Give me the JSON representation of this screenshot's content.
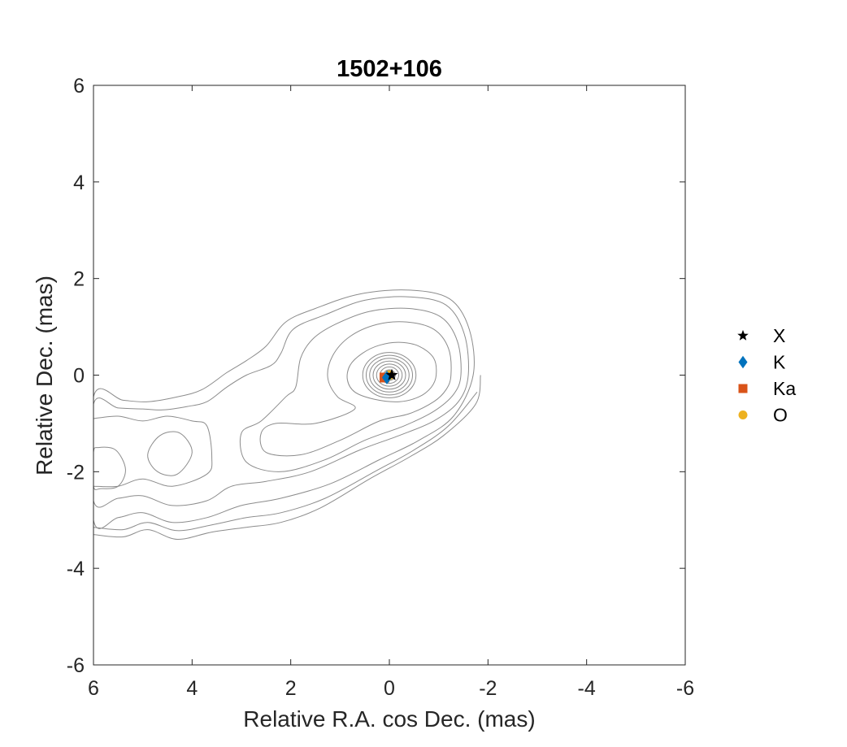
{
  "chart_data": {
    "type": "scatter",
    "title": "1502+106",
    "xlabel": "Relative R.A. cos Dec. (mas)",
    "ylabel": "Relative Dec. (mas)",
    "xlim": [
      6,
      -6
    ],
    "ylim": [
      -6,
      6
    ],
    "x_reversed": true,
    "xticks": [
      "6",
      "4",
      "2",
      "0",
      "-2",
      "-4",
      "-6"
    ],
    "yticks": [
      "6",
      "4",
      "2",
      "0",
      "-2",
      "-4",
      "-6"
    ],
    "grid": false,
    "legend_position": "outside-right",
    "legend": [
      {
        "label": "X",
        "marker": "star",
        "color": "#000000"
      },
      {
        "label": "K",
        "marker": "diamond",
        "color": "#0072BD"
      },
      {
        "label": "Ka",
        "marker": "square",
        "color": "#D95319"
      },
      {
        "label": "O",
        "marker": "circle",
        "color": "#EDB120"
      }
    ],
    "series": [
      {
        "name": "X",
        "marker": "star",
        "color": "#000000",
        "points": [
          [
            -0.05,
            0.0
          ]
        ]
      },
      {
        "name": "K",
        "marker": "diamond",
        "color": "#0072BD",
        "points": [
          [
            0.05,
            -0.05
          ]
        ]
      },
      {
        "name": "Ka",
        "marker": "square",
        "color": "#D95319",
        "points": [
          [
            0.1,
            -0.05
          ]
        ]
      },
      {
        "name": "O",
        "marker": "circle",
        "color": "#EDB120",
        "points": [
          [
            0.0,
            0.0
          ]
        ]
      }
    ],
    "contours": {
      "color": "#8c8c8c",
      "core_rings": [
        [
          0.12,
          0.11
        ],
        [
          0.19,
          0.17
        ],
        [
          0.26,
          0.23
        ],
        [
          0.33,
          0.29
        ],
        [
          0.4,
          0.35
        ],
        [
          0.47,
          0.41
        ],
        [
          0.54,
          0.47
        ]
      ],
      "outer": [
        [
          [
            -0.95,
            0.0
          ],
          [
            -0.9,
            0.35
          ],
          [
            -0.6,
            0.6
          ],
          [
            -0.2,
            0.68
          ],
          [
            0.2,
            0.62
          ],
          [
            0.55,
            0.45
          ],
          [
            0.8,
            0.2
          ],
          [
            0.85,
            -0.1
          ],
          [
            0.7,
            -0.35
          ],
          [
            0.3,
            -0.5
          ],
          [
            -0.2,
            -0.55
          ],
          [
            -0.6,
            -0.45
          ],
          [
            -0.85,
            -0.25
          ],
          [
            -0.95,
            0.0
          ]
        ],
        [
          [
            -1.25,
            0.0
          ],
          [
            -1.2,
            0.55
          ],
          [
            -0.9,
            0.95
          ],
          [
            -0.35,
            1.1
          ],
          [
            0.25,
            1.05
          ],
          [
            0.8,
            0.8
          ],
          [
            1.15,
            0.4
          ],
          [
            1.25,
            -0.05
          ],
          [
            1.05,
            -0.45
          ],
          [
            0.7,
            -0.7
          ],
          [
            1.5,
            -1.0
          ],
          [
            2.3,
            -1.0
          ],
          [
            2.6,
            -1.2
          ],
          [
            2.5,
            -1.6
          ],
          [
            1.8,
            -1.65
          ],
          [
            1.0,
            -1.35
          ],
          [
            0.2,
            -0.95
          ],
          [
            -0.4,
            -0.8
          ],
          [
            -0.9,
            -0.55
          ],
          [
            -1.15,
            -0.3
          ],
          [
            -1.25,
            0.0
          ]
        ],
        [
          [
            -1.45,
            0.0
          ],
          [
            -1.38,
            0.7
          ],
          [
            -1.05,
            1.2
          ],
          [
            -0.4,
            1.38
          ],
          [
            0.4,
            1.32
          ],
          [
            1.1,
            1.05
          ],
          [
            1.55,
            0.75
          ],
          [
            1.8,
            0.35
          ],
          [
            1.9,
            -0.25
          ],
          [
            2.1,
            -0.45
          ],
          [
            2.6,
            -0.95
          ],
          [
            3.0,
            -1.2
          ],
          [
            2.9,
            -1.8
          ],
          [
            2.2,
            -2.0
          ],
          [
            1.3,
            -1.75
          ],
          [
            0.5,
            -1.35
          ],
          [
            -0.3,
            -1.05
          ],
          [
            -0.9,
            -0.75
          ],
          [
            -1.3,
            -0.4
          ],
          [
            -1.45,
            0.0
          ]
        ],
        [
          [
            -1.6,
            0.0
          ],
          [
            -1.52,
            0.85
          ],
          [
            -1.15,
            1.45
          ],
          [
            -0.4,
            1.62
          ],
          [
            0.5,
            1.55
          ],
          [
            1.3,
            1.25
          ],
          [
            1.95,
            0.95
          ],
          [
            2.2,
            0.45
          ],
          [
            2.4,
            0.2
          ],
          [
            2.9,
            0.0
          ],
          [
            3.3,
            -0.25
          ],
          [
            3.7,
            -0.55
          ],
          [
            4.1,
            -0.65
          ],
          [
            4.6,
            -0.72
          ],
          [
            5.0,
            -0.7
          ],
          [
            5.5,
            -0.68
          ],
          [
            6.0,
            -0.6
          ],
          [
            6.0,
            -2.6
          ],
          [
            5.5,
            -2.55
          ],
          [
            5.0,
            -2.5
          ],
          [
            4.4,
            -2.7
          ],
          [
            3.7,
            -2.6
          ],
          [
            3.2,
            -2.3
          ],
          [
            2.5,
            -2.2
          ],
          [
            1.6,
            -2.0
          ],
          [
            0.6,
            -1.55
          ],
          [
            -0.2,
            -1.25
          ],
          [
            -0.9,
            -0.95
          ],
          [
            -1.4,
            -0.55
          ],
          [
            -1.6,
            0.0
          ]
        ],
        [
          [
            -1.7,
            0.0
          ],
          [
            -1.62,
            0.95
          ],
          [
            -1.22,
            1.58
          ],
          [
            -0.4,
            1.76
          ],
          [
            0.6,
            1.68
          ],
          [
            1.5,
            1.38
          ],
          [
            2.1,
            1.1
          ],
          [
            2.5,
            0.6
          ],
          [
            2.9,
            0.3
          ],
          [
            3.3,
            0.05
          ],
          [
            3.8,
            -0.3
          ],
          [
            4.3,
            -0.45
          ],
          [
            4.9,
            -0.55
          ],
          [
            5.4,
            -0.52
          ],
          [
            6.0,
            -0.45
          ],
          [
            6.0,
            -3.0
          ],
          [
            5.5,
            -2.95
          ],
          [
            5.0,
            -2.85
          ],
          [
            4.4,
            -3.05
          ],
          [
            3.7,
            -2.95
          ],
          [
            3.0,
            -2.7
          ],
          [
            2.2,
            -2.55
          ],
          [
            1.2,
            -2.25
          ],
          [
            0.2,
            -1.75
          ],
          [
            -0.6,
            -1.35
          ],
          [
            -1.3,
            -0.85
          ],
          [
            -1.7,
            0.0
          ]
        ],
        [
          [
            6.0,
            -0.9
          ],
          [
            5.5,
            -0.85
          ],
          [
            5.0,
            -0.95
          ],
          [
            4.5,
            -0.85
          ],
          [
            4.0,
            -0.95
          ],
          [
            3.7,
            -1.05
          ],
          [
            3.6,
            -1.7
          ],
          [
            3.7,
            -2.05
          ],
          [
            4.4,
            -2.3
          ],
          [
            5.0,
            -2.15
          ],
          [
            5.5,
            -2.3
          ],
          [
            6.0,
            -2.3
          ]
        ],
        [
          [
            4.0,
            -1.6
          ],
          [
            4.25,
            -1.2
          ],
          [
            4.65,
            -1.25
          ],
          [
            4.9,
            -1.65
          ],
          [
            4.7,
            -2.0
          ],
          [
            4.3,
            -2.05
          ],
          [
            4.0,
            -1.6
          ]
        ],
        [
          [
            5.35,
            -1.95
          ],
          [
            5.55,
            -1.55
          ],
          [
            5.9,
            -1.5
          ],
          [
            6.0,
            -1.6
          ],
          [
            6.0,
            -2.3
          ],
          [
            5.85,
            -2.35
          ],
          [
            5.5,
            -2.3
          ],
          [
            5.35,
            -1.95
          ]
        ],
        [
          [
            6.0,
            -3.3
          ],
          [
            5.4,
            -3.35
          ],
          [
            4.9,
            -3.2
          ],
          [
            4.3,
            -3.4
          ],
          [
            3.6,
            -3.25
          ],
          [
            2.9,
            -3.15
          ],
          [
            2.2,
            -3.05
          ],
          [
            1.4,
            -2.75
          ],
          [
            0.4,
            -2.15
          ],
          [
            -0.4,
            -1.7
          ],
          [
            -1.1,
            -1.25
          ],
          [
            -1.75,
            -0.6
          ],
          [
            -1.85,
            0.0
          ]
        ],
        [
          [
            6.0,
            -3.15
          ],
          [
            5.4,
            -3.2
          ],
          [
            4.9,
            -3.05
          ],
          [
            4.3,
            -3.22
          ],
          [
            3.6,
            -3.1
          ],
          [
            2.9,
            -2.95
          ],
          [
            2.2,
            -2.85
          ],
          [
            1.3,
            -2.55
          ],
          [
            0.3,
            -2.0
          ],
          [
            -0.5,
            -1.55
          ],
          [
            -1.2,
            -1.05
          ],
          [
            -1.78,
            -0.35
          ]
        ]
      ]
    }
  }
}
